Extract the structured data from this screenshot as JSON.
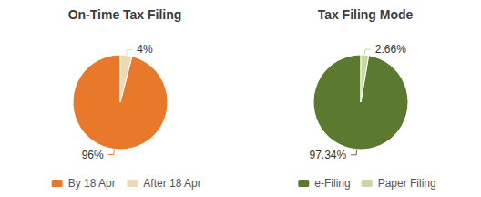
{
  "chart_data": [
    {
      "type": "pie",
      "title": "On-Time Tax Filing",
      "categories": [
        "By 18 Apr",
        "After 18 Apr"
      ],
      "values": [
        96,
        4
      ],
      "value_labels": [
        "96%",
        "4%"
      ],
      "colors": [
        "#E8792A",
        "#EDD9B8"
      ],
      "data_labels": true,
      "legend": "bottom"
    },
    {
      "type": "pie",
      "title": "Tax Filing Mode",
      "categories": [
        "e-Filing",
        "Paper Filing"
      ],
      "values": [
        97.34,
        2.66
      ],
      "value_labels": [
        "97.34%",
        "2.66%"
      ],
      "colors": [
        "#5B7A2F",
        "#C8D9A0"
      ],
      "data_labels": true,
      "legend": "bottom"
    }
  ]
}
